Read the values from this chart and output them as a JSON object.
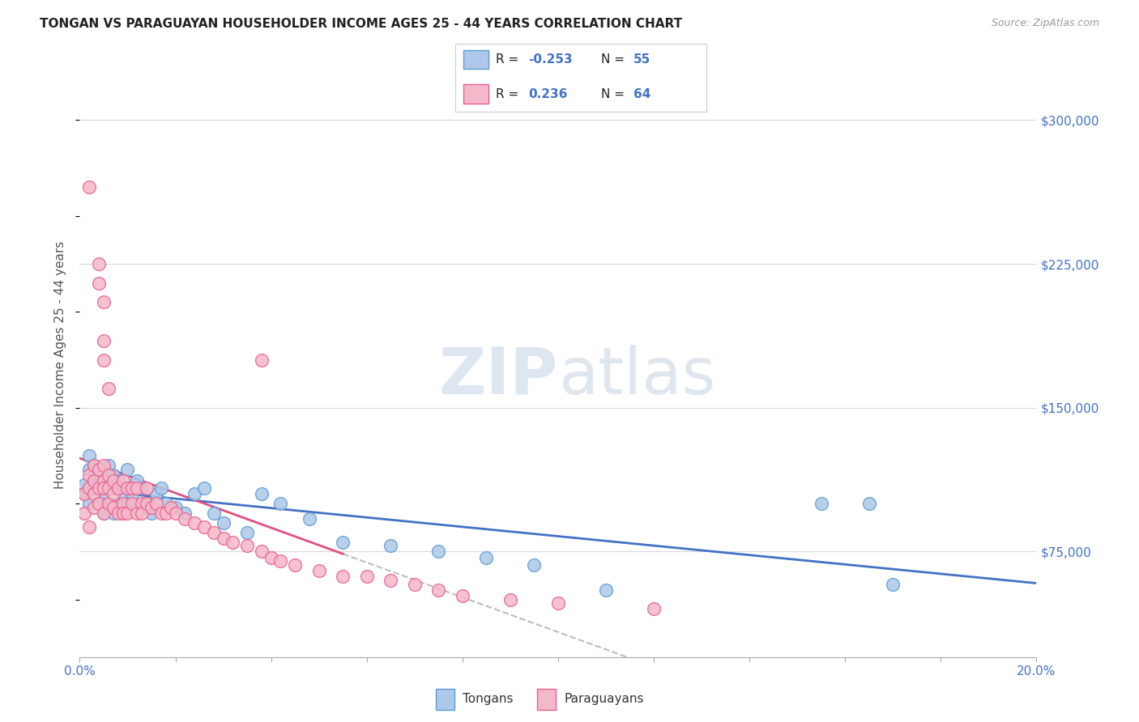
{
  "title": "TONGAN VS PARAGUAYAN HOUSEHOLDER INCOME AGES 25 - 44 YEARS CORRELATION CHART",
  "source_text": "Source: ZipAtlas.com",
  "ylabel": "Householder Income Ages 25 - 44 years",
  "xmin": 0.0,
  "xmax": 0.2,
  "ymin": 20000,
  "ymax": 325000,
  "yticks": [
    75000,
    150000,
    225000,
    300000
  ],
  "ytick_labels": [
    "$75,000",
    "$150,000",
    "$225,000",
    "$300,000"
  ],
  "xticks": [
    0.0,
    0.02,
    0.04,
    0.06,
    0.08,
    0.1,
    0.12,
    0.14,
    0.16,
    0.18,
    0.2
  ],
  "xtick_labels": [
    "0.0%",
    "",
    "",
    "",
    "",
    "",
    "",
    "",
    "",
    "",
    "20.0%"
  ],
  "tongan_color": "#adc8e8",
  "paraguayan_color": "#f5b8c8",
  "tongan_edge_color": "#5b9bd5",
  "paraguayan_edge_color": "#e86090",
  "tongan_line_color": "#4472c4",
  "paraguayan_line_color": "#e05080",
  "dashed_line_color": "#c0b8c8",
  "watermark_zip": "ZIP",
  "watermark_atlas": "atlas",
  "R_tongan": -0.253,
  "N_tongan": 55,
  "R_paraguayan": 0.236,
  "N_paraguayan": 64,
  "tongan_scatter_x": [
    0.001,
    0.001,
    0.002,
    0.002,
    0.002,
    0.003,
    0.003,
    0.003,
    0.003,
    0.004,
    0.004,
    0.004,
    0.005,
    0.005,
    0.005,
    0.006,
    0.006,
    0.006,
    0.007,
    0.007,
    0.007,
    0.008,
    0.008,
    0.008,
    0.009,
    0.009,
    0.01,
    0.01,
    0.011,
    0.012,
    0.013,
    0.014,
    0.015,
    0.016,
    0.017,
    0.018,
    0.02,
    0.022,
    0.024,
    0.026,
    0.028,
    0.03,
    0.035,
    0.038,
    0.042,
    0.048,
    0.055,
    0.065,
    0.075,
    0.085,
    0.095,
    0.11,
    0.155,
    0.165,
    0.17
  ],
  "tongan_scatter_y": [
    105000,
    110000,
    100000,
    118000,
    125000,
    108000,
    112000,
    120000,
    115000,
    100000,
    108000,
    115000,
    95000,
    105000,
    118000,
    100000,
    110000,
    120000,
    95000,
    108000,
    115000,
    100000,
    112000,
    108000,
    95000,
    105000,
    100000,
    118000,
    105000,
    112000,
    108000,
    100000,
    95000,
    105000,
    108000,
    100000,
    98000,
    95000,
    105000,
    108000,
    95000,
    90000,
    85000,
    105000,
    100000,
    92000,
    80000,
    78000,
    75000,
    72000,
    68000,
    55000,
    100000,
    100000,
    58000
  ],
  "paraguayan_scatter_x": [
    0.001,
    0.001,
    0.002,
    0.002,
    0.002,
    0.003,
    0.003,
    0.003,
    0.003,
    0.004,
    0.004,
    0.004,
    0.005,
    0.005,
    0.005,
    0.005,
    0.006,
    0.006,
    0.006,
    0.007,
    0.007,
    0.007,
    0.008,
    0.008,
    0.009,
    0.009,
    0.009,
    0.01,
    0.01,
    0.011,
    0.011,
    0.012,
    0.012,
    0.013,
    0.013,
    0.014,
    0.014,
    0.015,
    0.016,
    0.017,
    0.018,
    0.019,
    0.02,
    0.022,
    0.024,
    0.026,
    0.028,
    0.03,
    0.032,
    0.035,
    0.038,
    0.04,
    0.042,
    0.045,
    0.05,
    0.055,
    0.06,
    0.065,
    0.07,
    0.075,
    0.08,
    0.09,
    0.1,
    0.12
  ],
  "paraguayan_scatter_y": [
    95000,
    105000,
    108000,
    115000,
    88000,
    105000,
    120000,
    112000,
    98000,
    108000,
    118000,
    100000,
    112000,
    95000,
    108000,
    120000,
    100000,
    115000,
    108000,
    98000,
    112000,
    105000,
    95000,
    108000,
    100000,
    112000,
    95000,
    108000,
    95000,
    100000,
    108000,
    95000,
    108000,
    100000,
    95000,
    108000,
    100000,
    98000,
    100000,
    95000,
    95000,
    98000,
    95000,
    92000,
    90000,
    88000,
    85000,
    82000,
    80000,
    78000,
    75000,
    72000,
    70000,
    68000,
    65000,
    62000,
    62000,
    60000,
    58000,
    55000,
    52000,
    50000,
    48000,
    45000
  ],
  "paraguayan_outlier_x": [
    0.002,
    0.004,
    0.004,
    0.005,
    0.005,
    0.005,
    0.006,
    0.038
  ],
  "paraguayan_outlier_y": [
    265000,
    225000,
    215000,
    205000,
    185000,
    175000,
    160000,
    175000
  ]
}
